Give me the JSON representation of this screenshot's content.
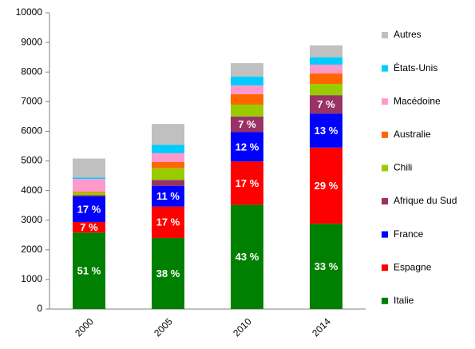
{
  "chart_data": {
    "type": "stacked_bar",
    "categories": [
      "2000",
      "2005",
      "2010",
      "2014"
    ],
    "ylim": [
      0,
      10000
    ],
    "yticks": [
      0,
      1000,
      2000,
      3000,
      4000,
      5000,
      6000,
      7000,
      8000,
      9000,
      10000
    ],
    "legend": "right",
    "series": [
      {
        "name": "Italie",
        "color": "#008000",
        "values": [
          2580,
          2400,
          3520,
          2880
        ],
        "labels": [
          "51 %",
          "38 %",
          "43 %",
          "33 %"
        ]
      },
      {
        "name": "Espagne",
        "color": "#ff0000",
        "values": [
          360,
          1060,
          1460,
          2570
        ],
        "labels": [
          "7 %",
          "17 %",
          "17 %",
          "29 %"
        ]
      },
      {
        "name": "France",
        "color": "#0000ff",
        "values": [
          860,
          700,
          990,
          1150
        ],
        "labels": [
          "17 %",
          "11 %",
          "12 %",
          "13 %"
        ]
      },
      {
        "name": "Afrique du Sud",
        "color": "#993366",
        "values": [
          50,
          200,
          530,
          620
        ],
        "labels": [
          null,
          null,
          "7 %",
          "7 %"
        ]
      },
      {
        "name": "Chili",
        "color": "#99cc00",
        "values": [
          90,
          400,
          400,
          380
        ]
      },
      {
        "name": "Australie",
        "color": "#ff6600",
        "values": [
          30,
          200,
          350,
          350
        ]
      },
      {
        "name": "Macédoine",
        "color": "#ff99cc",
        "values": [
          420,
          300,
          300,
          300
        ]
      },
      {
        "name": "États-Unis",
        "color": "#00ccff",
        "values": [
          50,
          280,
          300,
          250
        ]
      },
      {
        "name": "Autres",
        "color": "#c0c0c0",
        "values": [
          640,
          710,
          450,
          400
        ]
      }
    ]
  }
}
